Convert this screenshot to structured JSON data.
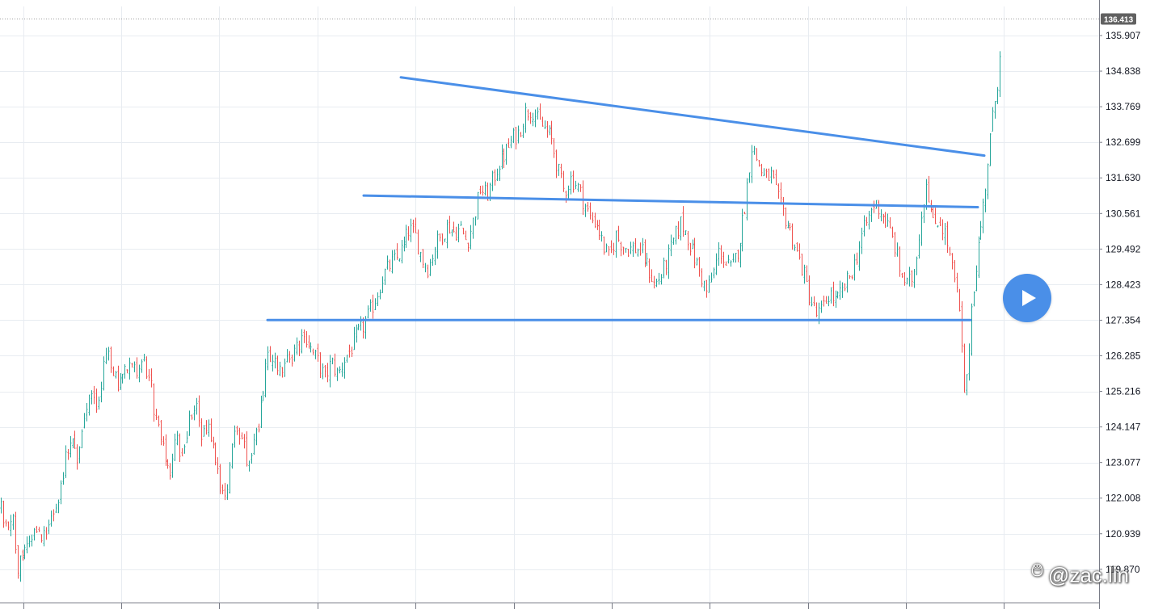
{
  "chart_data": {
    "type": "candlestick",
    "title": "",
    "xlabel": "",
    "ylabel": "",
    "ylim": [
      119.55,
      136.7
    ],
    "price_axis_labels": [
      "135.907",
      "134.838",
      "133.769",
      "132.699",
      "131.630",
      "130.561",
      "129.492",
      "128.423",
      "127.354",
      "126.285",
      "125.216",
      "124.147",
      "123.077",
      "122.008",
      "120.939",
      "119.870"
    ],
    "last_price": "136.413",
    "grid": true,
    "colors": {
      "up": "#26a69a",
      "down": "#ef5350",
      "trendline": "#4a8fe8",
      "grid": "#e8ecf1",
      "axis_line": "#787b86",
      "last_price_tag": "#616161"
    },
    "close_path": [
      [
        0,
        121.8
      ],
      [
        9,
        120.9
      ],
      [
        16,
        121.3
      ],
      [
        22,
        119.9
      ],
      [
        30,
        120.7
      ],
      [
        38,
        120.4
      ],
      [
        46,
        121.2
      ],
      [
        56,
        120.7
      ],
      [
        64,
        121.6
      ],
      [
        72,
        122.0
      ],
      [
        80,
        123.2
      ],
      [
        88,
        124.0
      ],
      [
        96,
        123.2
      ],
      [
        104,
        124.6
      ],
      [
        112,
        125.1
      ],
      [
        120,
        124.6
      ],
      [
        130,
        126.3
      ],
      [
        138,
        126.0
      ],
      [
        146,
        125.2
      ],
      [
        154,
        126.0
      ],
      [
        162,
        126.2
      ],
      [
        170,
        125.6
      ],
      [
        178,
        126.0
      ],
      [
        186,
        125.4
      ],
      [
        194,
        124.1
      ],
      [
        202,
        123.4
      ],
      [
        210,
        122.8
      ],
      [
        218,
        123.8
      ],
      [
        226,
        123.2
      ],
      [
        234,
        124.4
      ],
      [
        242,
        124.8
      ],
      [
        250,
        123.8
      ],
      [
        258,
        124.3
      ],
      [
        266,
        123.3
      ],
      [
        274,
        122.2
      ],
      [
        282,
        122.4
      ],
      [
        290,
        124.0
      ],
      [
        298,
        123.9
      ],
      [
        306,
        123.0
      ],
      [
        314,
        123.9
      ],
      [
        322,
        124.5
      ],
      [
        330,
        126.1
      ],
      [
        338,
        126.3
      ],
      [
        346,
        125.9
      ],
      [
        354,
        126.1
      ],
      [
        362,
        126.3
      ],
      [
        370,
        126.6
      ],
      [
        378,
        126.9
      ],
      [
        386,
        126.4
      ],
      [
        394,
        126.1
      ],
      [
        402,
        125.6
      ],
      [
        410,
        126.1
      ],
      [
        418,
        125.7
      ],
      [
        426,
        126.2
      ],
      [
        434,
        126.5
      ],
      [
        442,
        126.9
      ],
      [
        450,
        127.2
      ],
      [
        458,
        127.6
      ],
      [
        466,
        128.1
      ],
      [
        474,
        128.7
      ],
      [
        482,
        129.0
      ],
      [
        490,
        129.2
      ],
      [
        498,
        129.5
      ],
      [
        506,
        130.1
      ],
      [
        514,
        129.9
      ],
      [
        522,
        129.2
      ],
      [
        530,
        128.9
      ],
      [
        538,
        129.6
      ],
      [
        546,
        129.9
      ],
      [
        554,
        130.2
      ],
      [
        562,
        130.0
      ],
      [
        570,
        130.1
      ],
      [
        578,
        129.7
      ],
      [
        586,
        130.4
      ],
      [
        594,
        131.3
      ],
      [
        602,
        131.1
      ],
      [
        610,
        131.6
      ],
      [
        618,
        132.1
      ],
      [
        626,
        132.4
      ],
      [
        634,
        132.8
      ],
      [
        642,
        133.0
      ],
      [
        650,
        133.6
      ],
      [
        658,
        133.7
      ],
      [
        666,
        133.3
      ],
      [
        674,
        133.1
      ],
      [
        682,
        132.8
      ],
      [
        690,
        131.9
      ],
      [
        698,
        131.2
      ],
      [
        706,
        131.6
      ],
      [
        714,
        131.4
      ],
      [
        722,
        130.9
      ],
      [
        730,
        130.4
      ],
      [
        738,
        130.3
      ],
      [
        746,
        129.6
      ],
      [
        754,
        129.2
      ],
      [
        762,
        129.9
      ],
      [
        770,
        129.6
      ],
      [
        778,
        129.5
      ],
      [
        786,
        129.5
      ],
      [
        794,
        129.4
      ],
      [
        802,
        128.9
      ],
      [
        810,
        128.4
      ],
      [
        818,
        128.7
      ],
      [
        826,
        129.2
      ],
      [
        834,
        129.8
      ],
      [
        842,
        130.3
      ],
      [
        850,
        129.9
      ],
      [
        858,
        129.3
      ],
      [
        866,
        128.8
      ],
      [
        874,
        128.2
      ],
      [
        882,
        128.7
      ],
      [
        890,
        129.5
      ],
      [
        898,
        129.0
      ],
      [
        906,
        128.9
      ],
      [
        914,
        129.6
      ],
      [
        922,
        130.9
      ],
      [
        930,
        132.6
      ],
      [
        938,
        132.1
      ],
      [
        946,
        131.6
      ],
      [
        954,
        131.7
      ],
      [
        962,
        131.0
      ],
      [
        970,
        130.5
      ],
      [
        978,
        130.0
      ],
      [
        986,
        129.4
      ],
      [
        994,
        128.8
      ],
      [
        1002,
        128.0
      ],
      [
        1010,
        127.5
      ],
      [
        1018,
        127.7
      ],
      [
        1026,
        128.2
      ],
      [
        1034,
        127.9
      ],
      [
        1042,
        128.2
      ],
      [
        1050,
        128.6
      ],
      [
        1058,
        129.1
      ],
      [
        1066,
        129.9
      ],
      [
        1074,
        130.4
      ],
      [
        1082,
        130.9
      ],
      [
        1090,
        130.6
      ],
      [
        1098,
        130.2
      ],
      [
        1106,
        129.7
      ],
      [
        1114,
        128.8
      ],
      [
        1122,
        128.4
      ],
      [
        1130,
        128.7
      ],
      [
        1138,
        130.2
      ],
      [
        1146,
        131.6
      ],
      [
        1154,
        130.2
      ],
      [
        1162,
        130.4
      ],
      [
        1170,
        129.9
      ],
      [
        1178,
        128.9
      ],
      [
        1186,
        127.9
      ],
      [
        1194,
        124.8
      ],
      [
        1202,
        127.9
      ],
      [
        1210,
        129.5
      ],
      [
        1218,
        131.1
      ],
      [
        1226,
        133.0
      ],
      [
        1234,
        134.5
      ],
      [
        1240,
        136.4
      ]
    ],
    "trendlines": [
      {
        "role": "resistance",
        "points": [
          [
            496,
            134.65
          ],
          [
            1218,
            132.3
          ]
        ]
      },
      {
        "role": "midline",
        "points": [
          [
            450,
            131.1
          ],
          [
            1210,
            130.75
          ]
        ]
      },
      {
        "role": "support",
        "points": [
          [
            331,
            127.36
          ],
          [
            1201,
            127.36
          ]
        ]
      }
    ]
  },
  "watermark": {
    "icon": "fingerprint-icon",
    "glyph": "࿉",
    "text": "@zac.lin"
  },
  "overlay": {
    "play_button_icon": "play-icon"
  }
}
